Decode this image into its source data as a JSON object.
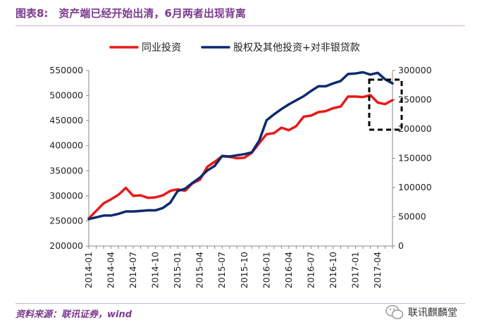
{
  "header": {
    "title": "图表8:　资产端已经开始出清，6月两者出现背离"
  },
  "footer": {
    "source": "资料来源：联讯证券，wind",
    "brand": "联讯麒麟堂"
  },
  "chart_data": {
    "type": "line",
    "title": "资产端已经开始出清，6月两者出现背离",
    "xlabel": "",
    "ylabel": "",
    "legend_position": "top",
    "x": [
      "2014-01",
      "2014-02",
      "2014-03",
      "2014-04",
      "2014-05",
      "2014-06",
      "2014-07",
      "2014-08",
      "2014-09",
      "2014-10",
      "2014-11",
      "2014-12",
      "2015-01",
      "2015-02",
      "2015-03",
      "2015-04",
      "2015-05",
      "2015-06",
      "2015-07",
      "2015-08",
      "2015-09",
      "2015-10",
      "2015-11",
      "2015-12",
      "2016-01",
      "2016-02",
      "2016-03",
      "2016-04",
      "2016-05",
      "2016-06",
      "2016-07",
      "2016-08",
      "2016-09",
      "2016-10",
      "2016-11",
      "2016-12",
      "2017-01",
      "2017-02",
      "2017-03",
      "2017-04",
      "2017-05",
      "2017-06"
    ],
    "xticks": [
      "2014-01",
      "2014-04",
      "2014-07",
      "2014-10",
      "2015-01",
      "2015-04",
      "2015-07",
      "2015-10",
      "2016-01",
      "2016-04",
      "2016-07",
      "2016-10",
      "2017-01",
      "2017-04"
    ],
    "left_axis": {
      "ylim": [
        200000,
        550000
      ],
      "ticks": [
        "200000",
        "250000",
        "300000",
        "350000",
        "400000",
        "450000",
        "500000",
        "550000"
      ]
    },
    "right_axis": {
      "ylim": [
        0,
        300000
      ],
      "ticks": [
        "0",
        "50000",
        "100000",
        "150000",
        "200000",
        "250000",
        "300000"
      ]
    },
    "series": [
      {
        "name": "同业投资",
        "axis": "left",
        "color": "#e8191a",
        "values": [
          255000,
          270000,
          285000,
          293000,
          302000,
          316000,
          300000,
          301000,
          296000,
          297000,
          301000,
          310000,
          313000,
          310000,
          325000,
          332000,
          358000,
          368000,
          379000,
          378000,
          375000,
          376000,
          386000,
          405000,
          423000,
          425000,
          436000,
          431000,
          439000,
          458000,
          460000,
          467000,
          469000,
          475000,
          478000,
          498000,
          498000,
          497000,
          501000,
          486000,
          483000,
          491000
        ]
      },
      {
        "name": "股权及其他投资+对非银贷款",
        "axis": "right",
        "color": "#0b2a6f",
        "values": [
          46000,
          49000,
          52000,
          52000,
          55000,
          59000,
          59000,
          60000,
          61000,
          61000,
          65000,
          74000,
          94000,
          98000,
          108000,
          117000,
          129000,
          137000,
          154000,
          153000,
          155000,
          157000,
          160000,
          180000,
          215000,
          225000,
          234000,
          242000,
          249000,
          256000,
          265000,
          273000,
          273000,
          278000,
          282000,
          294000,
          295000,
          297000,
          293000,
          296000,
          285000,
          278000
        ]
      }
    ],
    "annotation": {
      "type": "dashed-box",
      "span": [
        "2017-04",
        "2017-06"
      ],
      "meaning": "6月两者出现背离"
    }
  }
}
